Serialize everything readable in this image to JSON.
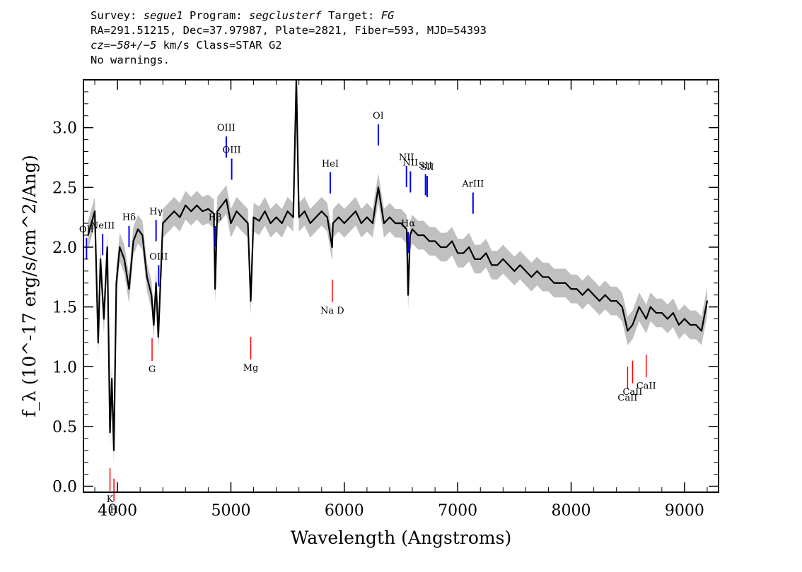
{
  "header": {
    "l1_survey_label": "Survey:",
    "l1_survey": "segue1",
    "l1_program_label": "Program:",
    "l1_program": "segclusterf",
    "l1_target_label": "Target:",
    "l1_target": "FG",
    "line2": "RA=291.51215, Dec=37.97987, Plate=2821, Fiber=593, MJD=54393",
    "l3_cz": "cz=−58+/−5",
    "l3_rest": " km/s Class=STAR G2",
    "line4": "No warnings."
  },
  "chart_data": {
    "type": "line",
    "xlabel": "Wavelength (Angstroms)",
    "ylabel": "f_λ (10^-17 erg/s/cm^2/Ang)",
    "xlim": [
      3700,
      9300
    ],
    "ylim": [
      -0.05,
      3.4
    ],
    "x_ticks": [
      "4000",
      "5000",
      "6000",
      "7000",
      "8000",
      "9000"
    ],
    "y_ticks": [
      "0.0",
      "0.5",
      "1.0",
      "1.5",
      "2.0",
      "2.5",
      "3.0"
    ],
    "grid": false,
    "series": [
      {
        "color": "#000000",
        "x": [
          3740,
          3800,
          3830,
          3850,
          3880,
          3910,
          3934,
          3950,
          3968,
          3990,
          4020,
          4060,
          4102,
          4140,
          4180,
          4220,
          4260,
          4300,
          4320,
          4340,
          4360,
          4400,
          4450,
          4500,
          4550,
          4600,
          4650,
          4700,
          4750,
          4800,
          4850,
          4861,
          4880,
          4920,
          4960,
          5000,
          5050,
          5100,
          5150,
          5175,
          5200,
          5250,
          5300,
          5350,
          5400,
          5450,
          5500,
          5550,
          5577,
          5600,
          5650,
          5700,
          5750,
          5800,
          5850,
          5893,
          5900,
          5950,
          6000,
          6050,
          6100,
          6150,
          6200,
          6250,
          6300,
          6350,
          6400,
          6450,
          6500,
          6550,
          6563,
          6580,
          6600,
          6650,
          6700,
          6750,
          6800,
          6850,
          6900,
          6950,
          7000,
          7050,
          7100,
          7150,
          7200,
          7250,
          7300,
          7350,
          7400,
          7450,
          7500,
          7550,
          7600,
          7650,
          7700,
          7750,
          7800,
          7850,
          7900,
          7950,
          8000,
          8050,
          8100,
          8150,
          8200,
          8250,
          8300,
          8350,
          8400,
          8450,
          8498,
          8542,
          8600,
          8662,
          8700,
          8750,
          8800,
          8850,
          8900,
          8950,
          9000,
          9050,
          9100,
          9150,
          9200
        ],
        "y": [
          2.1,
          2.3,
          1.2,
          1.9,
          1.4,
          2.0,
          0.45,
          0.9,
          0.3,
          1.7,
          2.0,
          1.9,
          1.65,
          2.05,
          2.15,
          2.1,
          1.75,
          1.6,
          1.35,
          1.7,
          1.25,
          2.2,
          2.25,
          2.3,
          2.25,
          2.35,
          2.3,
          2.35,
          2.3,
          2.32,
          2.28,
          1.65,
          2.3,
          2.35,
          2.4,
          2.2,
          2.3,
          2.25,
          2.2,
          1.55,
          2.25,
          2.22,
          2.3,
          2.2,
          2.25,
          2.2,
          2.3,
          2.25,
          3.4,
          2.25,
          2.3,
          2.2,
          2.25,
          2.3,
          2.25,
          2.0,
          2.2,
          2.25,
          2.2,
          2.25,
          2.3,
          2.2,
          2.25,
          2.2,
          2.5,
          2.2,
          2.25,
          2.2,
          2.2,
          2.15,
          1.6,
          2.1,
          2.15,
          2.1,
          2.1,
          2.05,
          2.05,
          2.0,
          2.0,
          2.05,
          1.95,
          1.95,
          2.0,
          1.9,
          1.9,
          1.95,
          1.85,
          1.85,
          1.9,
          1.85,
          1.8,
          1.85,
          1.8,
          1.75,
          1.8,
          1.75,
          1.75,
          1.7,
          1.7,
          1.7,
          1.65,
          1.65,
          1.6,
          1.65,
          1.6,
          1.55,
          1.6,
          1.55,
          1.55,
          1.5,
          1.3,
          1.35,
          1.5,
          1.4,
          1.5,
          1.45,
          1.45,
          1.4,
          1.45,
          1.35,
          1.4,
          1.35,
          1.35,
          1.3,
          1.55
        ]
      }
    ],
    "lines": [
      {
        "label": "ΟII",
        "x": 3727,
        "type": "emission"
      },
      {
        "label": "NeIII",
        "x": 3869,
        "type": "emission"
      },
      {
        "label": "Hδ",
        "x": 4102,
        "type": "emission"
      },
      {
        "label": "Hγ",
        "x": 4340,
        "type": "emission"
      },
      {
        "label": "OIII",
        "x": 4363,
        "type": "emission"
      },
      {
        "label": "Hβ",
        "x": 4861,
        "type": "emission"
      },
      {
        "label": "OIII",
        "x": 4959,
        "type": "emission"
      },
      {
        "label": "OIII",
        "x": 5007,
        "type": "emission"
      },
      {
        "label": "HeI",
        "x": 5876,
        "type": "emission"
      },
      {
        "label": "OI",
        "x": 6300,
        "type": "emission"
      },
      {
        "label": "NII",
        "x": 6548,
        "type": "emission"
      },
      {
        "label": "Hα",
        "x": 6563,
        "type": "emission"
      },
      {
        "label": "NII",
        "x": 6583,
        "type": "emission"
      },
      {
        "label": "SII",
        "x": 6716,
        "type": "emission"
      },
      {
        "label": "SII",
        "x": 6731,
        "type": "emission"
      },
      {
        "label": "ArIII",
        "x": 7135,
        "type": "emission"
      },
      {
        "label": "K",
        "x": 3934,
        "type": "absorption"
      },
      {
        "label": "H",
        "x": 3969,
        "type": "absorption"
      },
      {
        "label": "G",
        "x": 4305,
        "type": "absorption"
      },
      {
        "label": "Mg",
        "x": 5175,
        "type": "absorption"
      },
      {
        "label": "Na D",
        "x": 5894,
        "type": "absorption"
      },
      {
        "label": "CaII",
        "x": 8498,
        "type": "absorption"
      },
      {
        "label": "CaII",
        "x": 8542,
        "type": "absorption"
      },
      {
        "label": "CaII",
        "x": 8662,
        "type": "absorption"
      }
    ],
    "colors": {
      "spectrum": "#000000",
      "error_band": "#c0c0c0",
      "emission": "#0000ff",
      "absorption": "#ff0000"
    }
  }
}
